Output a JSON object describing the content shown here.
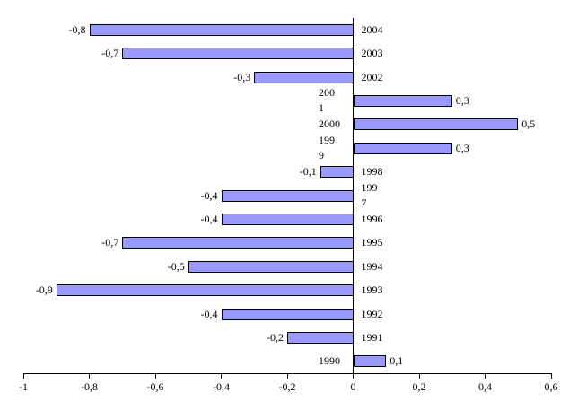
{
  "chart_data": {
    "type": "bar",
    "orientation": "horizontal",
    "title": "",
    "xlabel": "",
    "ylabel": "",
    "xlim": [
      -1,
      0.6
    ],
    "grid": false,
    "legend": false,
    "decimal_separator": ",",
    "categories": [
      "2004",
      "2003",
      "2002",
      "2001",
      "2000",
      "1999",
      "1998",
      "1997",
      "1996",
      "1995",
      "1994",
      "1993",
      "1992",
      "1991",
      "1990"
    ],
    "values": [
      -0.8,
      -0.7,
      -0.3,
      0.3,
      0.5,
      0.3,
      -0.1,
      -0.4,
      -0.4,
      -0.7,
      -0.5,
      -0.9,
      -0.4,
      -0.2,
      0.1
    ],
    "points": [
      {
        "year": "2004",
        "value": -0.8,
        "value_label": "-0,8",
        "year_label_lines": [
          "2004"
        ],
        "year_label_side": "right"
      },
      {
        "year": "2003",
        "value": -0.7,
        "value_label": "-0,7",
        "year_label_lines": [
          "2003"
        ],
        "year_label_side": "right"
      },
      {
        "year": "2002",
        "value": -0.3,
        "value_label": "-0,3",
        "year_label_lines": [
          "2002"
        ],
        "year_label_side": "right"
      },
      {
        "year": "2001",
        "value": 0.3,
        "value_label": "0,3",
        "year_label_lines": [
          "200",
          "1"
        ],
        "year_label_side": "left"
      },
      {
        "year": "2000",
        "value": 0.5,
        "value_label": "0,5",
        "year_label_lines": [
          "2000"
        ],
        "year_label_side": "left"
      },
      {
        "year": "1999",
        "value": 0.3,
        "value_label": "0,3",
        "year_label_lines": [
          "199",
          "9"
        ],
        "year_label_side": "left"
      },
      {
        "year": "1998",
        "value": -0.1,
        "value_label": "-0,1",
        "year_label_lines": [
          "1998"
        ],
        "year_label_side": "right"
      },
      {
        "year": "1997",
        "value": -0.4,
        "value_label": "-0,4",
        "year_label_lines": [
          "199",
          "7"
        ],
        "year_label_side": "right"
      },
      {
        "year": "1996",
        "value": -0.4,
        "value_label": "-0,4",
        "year_label_lines": [
          "1996"
        ],
        "year_label_side": "right"
      },
      {
        "year": "1995",
        "value": -0.7,
        "value_label": "-0,7",
        "year_label_lines": [
          "1995"
        ],
        "year_label_side": "right"
      },
      {
        "year": "1994",
        "value": -0.5,
        "value_label": "-0,5",
        "year_label_lines": [
          "1994"
        ],
        "year_label_side": "right"
      },
      {
        "year": "1993",
        "value": -0.9,
        "value_label": "-0,9",
        "year_label_lines": [
          "1993"
        ],
        "year_label_side": "right"
      },
      {
        "year": "1992",
        "value": -0.4,
        "value_label": "-0,4",
        "year_label_lines": [
          "1992"
        ],
        "year_label_side": "right"
      },
      {
        "year": "1991",
        "value": -0.2,
        "value_label": "-0,2",
        "year_label_lines": [
          "1991"
        ],
        "year_label_side": "right"
      },
      {
        "year": "1990",
        "value": 0.1,
        "value_label": "0,1",
        "year_label_lines": [
          "1990"
        ],
        "year_label_side": "left"
      }
    ],
    "x_ticks": [
      {
        "value": -1.0,
        "label": "-1"
      },
      {
        "value": -0.8,
        "label": "-0,8"
      },
      {
        "value": -0.6,
        "label": "-0,6"
      },
      {
        "value": -0.4,
        "label": "-0,4"
      },
      {
        "value": -0.2,
        "label": "-0,2"
      },
      {
        "value": 0.0,
        "label": "0"
      },
      {
        "value": 0.2,
        "label": "0,2"
      },
      {
        "value": 0.4,
        "label": "0,4"
      },
      {
        "value": 0.6,
        "label": "0,6"
      }
    ],
    "colors": {
      "bar_fill": "#9999ff",
      "bar_border": "#000000",
      "axis": "#000000",
      "text": "#000000",
      "background": "#ffffff"
    }
  }
}
